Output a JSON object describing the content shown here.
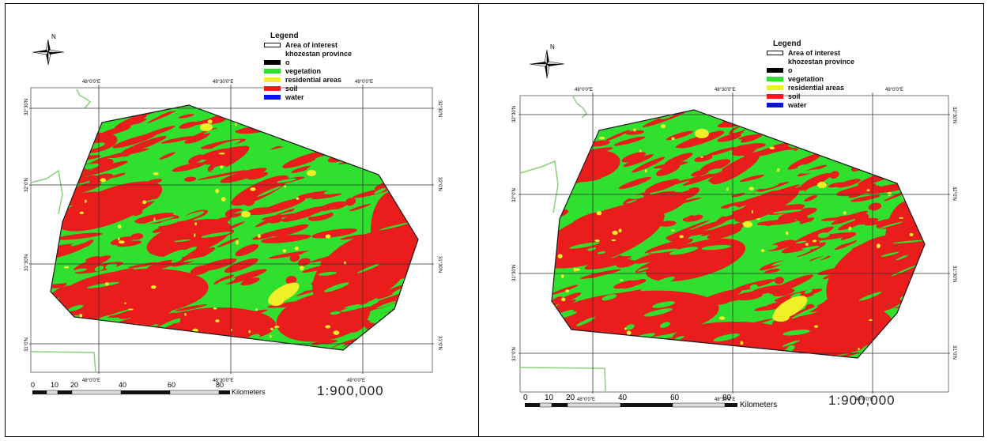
{
  "colors": {
    "soil": "#ea1c1c",
    "vegetation": "#2fe02f",
    "residential": "#f0f028",
    "water": "#0a14e0",
    "zero": "#000000",
    "province": "#8ad27a",
    "boundary": "#1a1a1a"
  },
  "maps": [
    {
      "north": "N",
      "legend": {
        "title": "Legend",
        "items": [
          {
            "label": "Area of interest",
            "swatch": "outline"
          },
          {
            "label": "khozestan province",
            "swatch": "province"
          },
          {
            "label": "o",
            "swatch": "zero"
          },
          {
            "label": "vegetation",
            "swatch": "vegetation"
          },
          {
            "label": "residential areas",
            "swatch": "residential"
          },
          {
            "label": "soil",
            "swatch": "soil"
          },
          {
            "label": "water",
            "swatch": "water"
          }
        ]
      },
      "top_ticks": [
        "48°0'0\"E",
        "48°30'0\"E",
        "49°0'0\"E"
      ],
      "bottom_ticks": [
        "48°0'0\"E",
        "48°30'0\"E",
        "49°0'0\"E"
      ],
      "lat_ticks": [
        "32°30'N",
        "32°0'N",
        "31°30'N",
        "31°0'N"
      ],
      "scale_numbers": [
        "0",
        "10",
        "20",
        "40",
        "60",
        "80"
      ],
      "scale_unit": "Kilometers",
      "ratio": "1:900,000"
    },
    {
      "north": "N",
      "legend": {
        "title": "Legend",
        "items": [
          {
            "label": "Area of interest",
            "swatch": "outline"
          },
          {
            "label": "khozestan province",
            "swatch": "province"
          },
          {
            "label": "o",
            "swatch": "zero"
          },
          {
            "label": "vegetation",
            "swatch": "vegetation"
          },
          {
            "label": "residential areas",
            "swatch": "residential"
          },
          {
            "label": "soil",
            "swatch": "soil"
          },
          {
            "label": "water",
            "swatch": "water"
          }
        ]
      },
      "top_ticks": [
        "48°0'0\"E",
        "48°30'0\"E",
        "49°0'0\"E"
      ],
      "bottom_ticks": [
        "48°0'0\"E",
        "48°30'0\"E",
        "49°0'0\"E"
      ],
      "lat_ticks": [
        "32°30'N",
        "32°0'N",
        "31°30'N",
        "31°0'N"
      ],
      "scale_numbers": [
        "0",
        "10",
        "20",
        "40",
        "60",
        "80"
      ],
      "scale_unit": "Kilometers",
      "ratio": "1:900,000"
    }
  ]
}
